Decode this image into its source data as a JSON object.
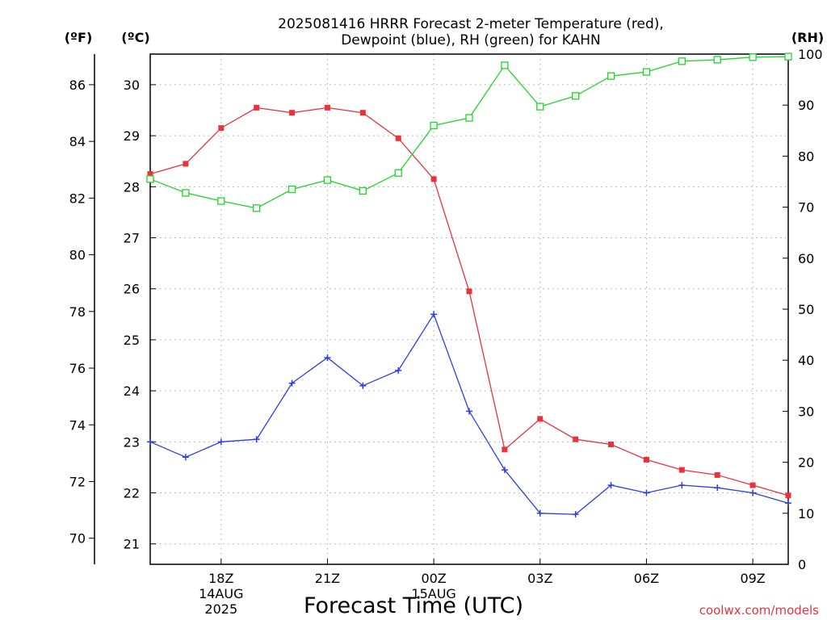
{
  "chart_data": {
    "type": "line",
    "title": [
      "2025081416 HRRR Forecast 2-meter Temperature (red),",
      "Dewpoint (blue), RH (green) for KAHN"
    ],
    "xlabel": "Forecast Time (UTC)",
    "credit": "coolwx.com/models",
    "units": {
      "left_outer": "(ºF)",
      "left_inner": "(ºC)",
      "right": "(RH)"
    },
    "x_hours": [
      16,
      17,
      18,
      19,
      20,
      21,
      22,
      23,
      24,
      25,
      26,
      27,
      28,
      29,
      30,
      31,
      32,
      33,
      34
    ],
    "xlim": [
      16,
      34
    ],
    "x_ticks": [
      {
        "hour": 18,
        "label": "18Z",
        "date": "14AUG",
        "year": "2025"
      },
      {
        "hour": 21,
        "label": "21Z"
      },
      {
        "hour": 24,
        "label": "00Z",
        "date": "15AUG"
      },
      {
        "hour": 27,
        "label": "03Z"
      },
      {
        "hour": 30,
        "label": "06Z"
      },
      {
        "hour": 33,
        "label": "09Z"
      }
    ],
    "celsius_axis": {
      "range": [
        20.6,
        30.6
      ],
      "ticks": [
        21,
        22,
        23,
        24,
        25,
        26,
        27,
        28,
        29,
        30
      ]
    },
    "fahrenheit_axis": {
      "ticks": [
        70,
        72,
        74,
        76,
        78,
        80,
        82,
        84,
        86
      ]
    },
    "rh_axis": {
      "range": [
        0,
        100
      ],
      "ticks": [
        0,
        10,
        20,
        30,
        40,
        50,
        60,
        70,
        80,
        90,
        100
      ]
    },
    "series": [
      {
        "name": "Temperature",
        "axis": "celsius",
        "color": "#e8323c",
        "marker": "filled-square",
        "values": [
          28.25,
          28.45,
          29.15,
          29.55,
          29.45,
          29.55,
          29.45,
          28.95,
          28.15,
          25.95,
          22.85,
          23.45,
          23.05,
          22.95,
          22.65,
          22.45,
          22.35,
          22.15,
          21.95
        ]
      },
      {
        "name": "Dewpoint",
        "axis": "celsius",
        "color": "#2a3ee6",
        "marker": "plus",
        "values": [
          23.0,
          22.7,
          23.0,
          23.05,
          24.15,
          24.65,
          24.1,
          24.4,
          25.5,
          23.6,
          22.45,
          21.6,
          21.58,
          22.15,
          22.0,
          22.15,
          22.1,
          22.0,
          21.8
        ]
      },
      {
        "name": "RH",
        "axis": "rh",
        "color": "#1fd62a",
        "marker": "open-square",
        "values": [
          75.5,
          72.8,
          71.2,
          69.8,
          73.5,
          75.3,
          73.2,
          76.7,
          86.0,
          87.5,
          97.8,
          89.7,
          91.8,
          95.7,
          96.5,
          98.6,
          98.9,
          99.4,
          99.5
        ]
      }
    ]
  }
}
